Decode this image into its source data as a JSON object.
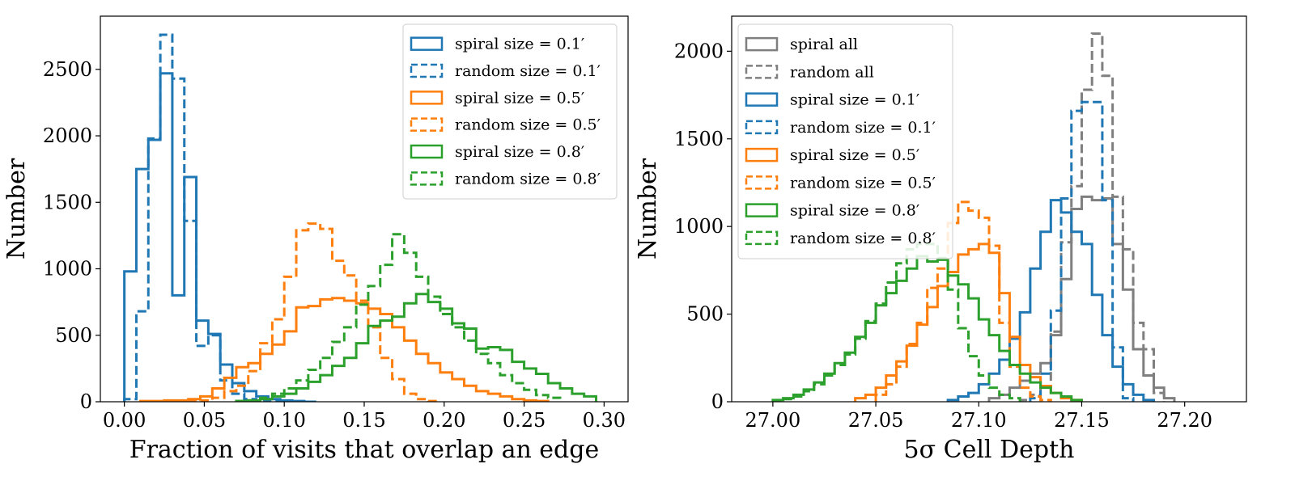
{
  "chart_data": [
    {
      "type": "histogram",
      "xlabel": "Fraction of visits that overlap an edge",
      "ylabel": "Number",
      "xlim": [
        -0.015,
        0.315
      ],
      "ylim": [
        0,
        2900
      ],
      "xticks": [
        0.0,
        0.05,
        0.1,
        0.15,
        0.2,
        0.25,
        0.3
      ],
      "xtick_labels": [
        "0.00",
        "0.05",
        "0.10",
        "0.15",
        "0.20",
        "0.25",
        "0.30"
      ],
      "yticks": [
        0,
        500,
        1000,
        1500,
        2000,
        2500
      ],
      "ytick_labels": [
        "0",
        "500",
        "1000",
        "1500",
        "2000",
        "2500"
      ],
      "grid": false,
      "legend_position": "top-right",
      "series": [
        {
          "name": "spiral size = 0.1′",
          "color": "#1f77b4",
          "dash": "solid",
          "x_start": 0.0,
          "bin_width": 0.0075,
          "values": [
            980,
            1750,
            1970,
            2470,
            800,
            1690,
            610,
            510,
            280,
            140,
            80,
            40,
            20,
            10,
            5,
            0
          ]
        },
        {
          "name": "random size = 0.1′",
          "color": "#1f77b4",
          "dash": "dashed",
          "x_start": 0.0,
          "bin_width": 0.0075,
          "values": [
            20,
            680,
            1980,
            2760,
            2430,
            1360,
            420,
            500,
            160,
            60,
            20,
            10,
            5,
            0
          ]
        },
        {
          "name": "spiral size = 0.5′",
          "color": "#ff7f0e",
          "dash": "solid",
          "x_start": 0.01,
          "bin_width": 0.0075,
          "values": [
            5,
            5,
            10,
            10,
            20,
            40,
            100,
            180,
            260,
            290,
            360,
            430,
            530,
            710,
            720,
            770,
            780,
            760,
            740,
            700,
            660,
            560,
            460,
            360,
            290,
            220,
            170,
            120,
            80,
            60,
            40,
            20,
            10,
            5
          ]
        },
        {
          "name": "random size = 0.5′",
          "color": "#ff7f0e",
          "dash": "dashed",
          "x_start": 0.04,
          "bin_width": 0.0075,
          "values": [
            5,
            10,
            30,
            80,
            120,
            230,
            440,
            620,
            940,
            1290,
            1340,
            1300,
            1060,
            950,
            760,
            560,
            330,
            170,
            60,
            20,
            5
          ]
        },
        {
          "name": "spiral size = 0.8′",
          "color": "#2ca02c",
          "dash": "solid",
          "x_start": 0.07,
          "bin_width": 0.0075,
          "values": [
            5,
            10,
            20,
            40,
            60,
            100,
            150,
            200,
            270,
            330,
            440,
            570,
            610,
            640,
            740,
            810,
            750,
            700,
            590,
            550,
            400,
            410,
            390,
            300,
            250,
            210,
            140,
            100,
            60,
            40
          ]
        },
        {
          "name": "random size = 0.8′",
          "color": "#2ca02c",
          "dash": "dashed",
          "x_start": 0.07,
          "bin_width": 0.0075,
          "values": [
            5,
            10,
            30,
            60,
            100,
            160,
            240,
            330,
            450,
            560,
            730,
            870,
            1030,
            1260,
            1120,
            940,
            790,
            660,
            560,
            460,
            360,
            290,
            200,
            140,
            90,
            50,
            30
          ]
        }
      ]
    },
    {
      "type": "histogram",
      "xlabel": "5σ Cell Depth",
      "ylabel": "Number",
      "xlim": [
        26.98,
        27.23
      ],
      "ylim": [
        0,
        2200
      ],
      "xticks": [
        27.0,
        27.05,
        27.1,
        27.15,
        27.2
      ],
      "xtick_labels": [
        "27.00",
        "27.05",
        "27.10",
        "27.15",
        "27.20"
      ],
      "yticks": [
        0,
        500,
        1000,
        1500,
        2000
      ],
      "ytick_labels": [
        "0",
        "500",
        "1000",
        "1500",
        "2000"
      ],
      "grid": false,
      "legend_position": "top-left",
      "series": [
        {
          "name": "spiral all",
          "color": "#7f7f7f",
          "dash": "solid",
          "x_start": 27.105,
          "bin_width": 0.005,
          "values": [
            20,
            40,
            80,
            120,
            160,
            220,
            380,
            700,
            1100,
            1170,
            1150,
            1160,
            900,
            640,
            300,
            150,
            80,
            20
          ]
        },
        {
          "name": "random all",
          "color": "#7f7f7f",
          "dash": "dashed",
          "x_start": 27.12,
          "bin_width": 0.005,
          "values": [
            10,
            40,
            90,
            400,
            910,
            1230,
            1780,
            2100,
            1860,
            1170,
            870,
            450,
            300,
            50
          ]
        },
        {
          "name": "spiral size = 0.1′",
          "color": "#1f77b4",
          "dash": "solid",
          "x_start": 27.085,
          "bin_width": 0.005,
          "values": [
            10,
            30,
            50,
            100,
            160,
            240,
            360,
            510,
            760,
            970,
            1150,
            1080,
            970,
            900,
            610,
            380,
            200,
            100,
            40,
            10
          ]
        },
        {
          "name": "random size = 0.1′",
          "color": "#1f77b4",
          "dash": "dashed",
          "x_start": 27.125,
          "bin_width": 0.005,
          "values": [
            20,
            160,
            520,
            1160,
            1660,
            1710,
            1710,
            1150,
            310,
            20
          ]
        },
        {
          "name": "spiral size = 0.5′",
          "color": "#ff7f0e",
          "dash": "solid",
          "x_start": 27.04,
          "bin_width": 0.005,
          "values": [
            20,
            40,
            80,
            150,
            230,
            320,
            440,
            540,
            660,
            740,
            840,
            870,
            900,
            850,
            620,
            370,
            210,
            140,
            90,
            50,
            20,
            10
          ]
        },
        {
          "name": "random size = 0.5′",
          "color": "#ff7f0e",
          "dash": "dashed",
          "x_start": 27.05,
          "bin_width": 0.005,
          "values": [
            40,
            100,
            200,
            330,
            450,
            650,
            760,
            1020,
            1140,
            1090,
            1050,
            890,
            450,
            200,
            80,
            30,
            10
          ]
        },
        {
          "name": "spiral size = 0.8′",
          "color": "#2ca02c",
          "dash": "solid",
          "x_start": 27.0,
          "bin_width": 0.005,
          "values": [
            10,
            20,
            40,
            70,
            110,
            160,
            220,
            280,
            370,
            450,
            550,
            620,
            690,
            760,
            830,
            800,
            810,
            720,
            670,
            590,
            470,
            380,
            290,
            210,
            160,
            110,
            80,
            50,
            30,
            10
          ]
        },
        {
          "name": "random size = 0.8′",
          "color": "#2ca02c",
          "dash": "dashed",
          "x_start": 27.0,
          "bin_width": 0.005,
          "values": [
            5,
            15,
            30,
            60,
            100,
            150,
            210,
            270,
            360,
            460,
            560,
            680,
            790,
            870,
            900,
            900,
            820,
            640,
            420,
            260,
            150,
            80,
            40,
            20
          ]
        }
      ]
    }
  ]
}
